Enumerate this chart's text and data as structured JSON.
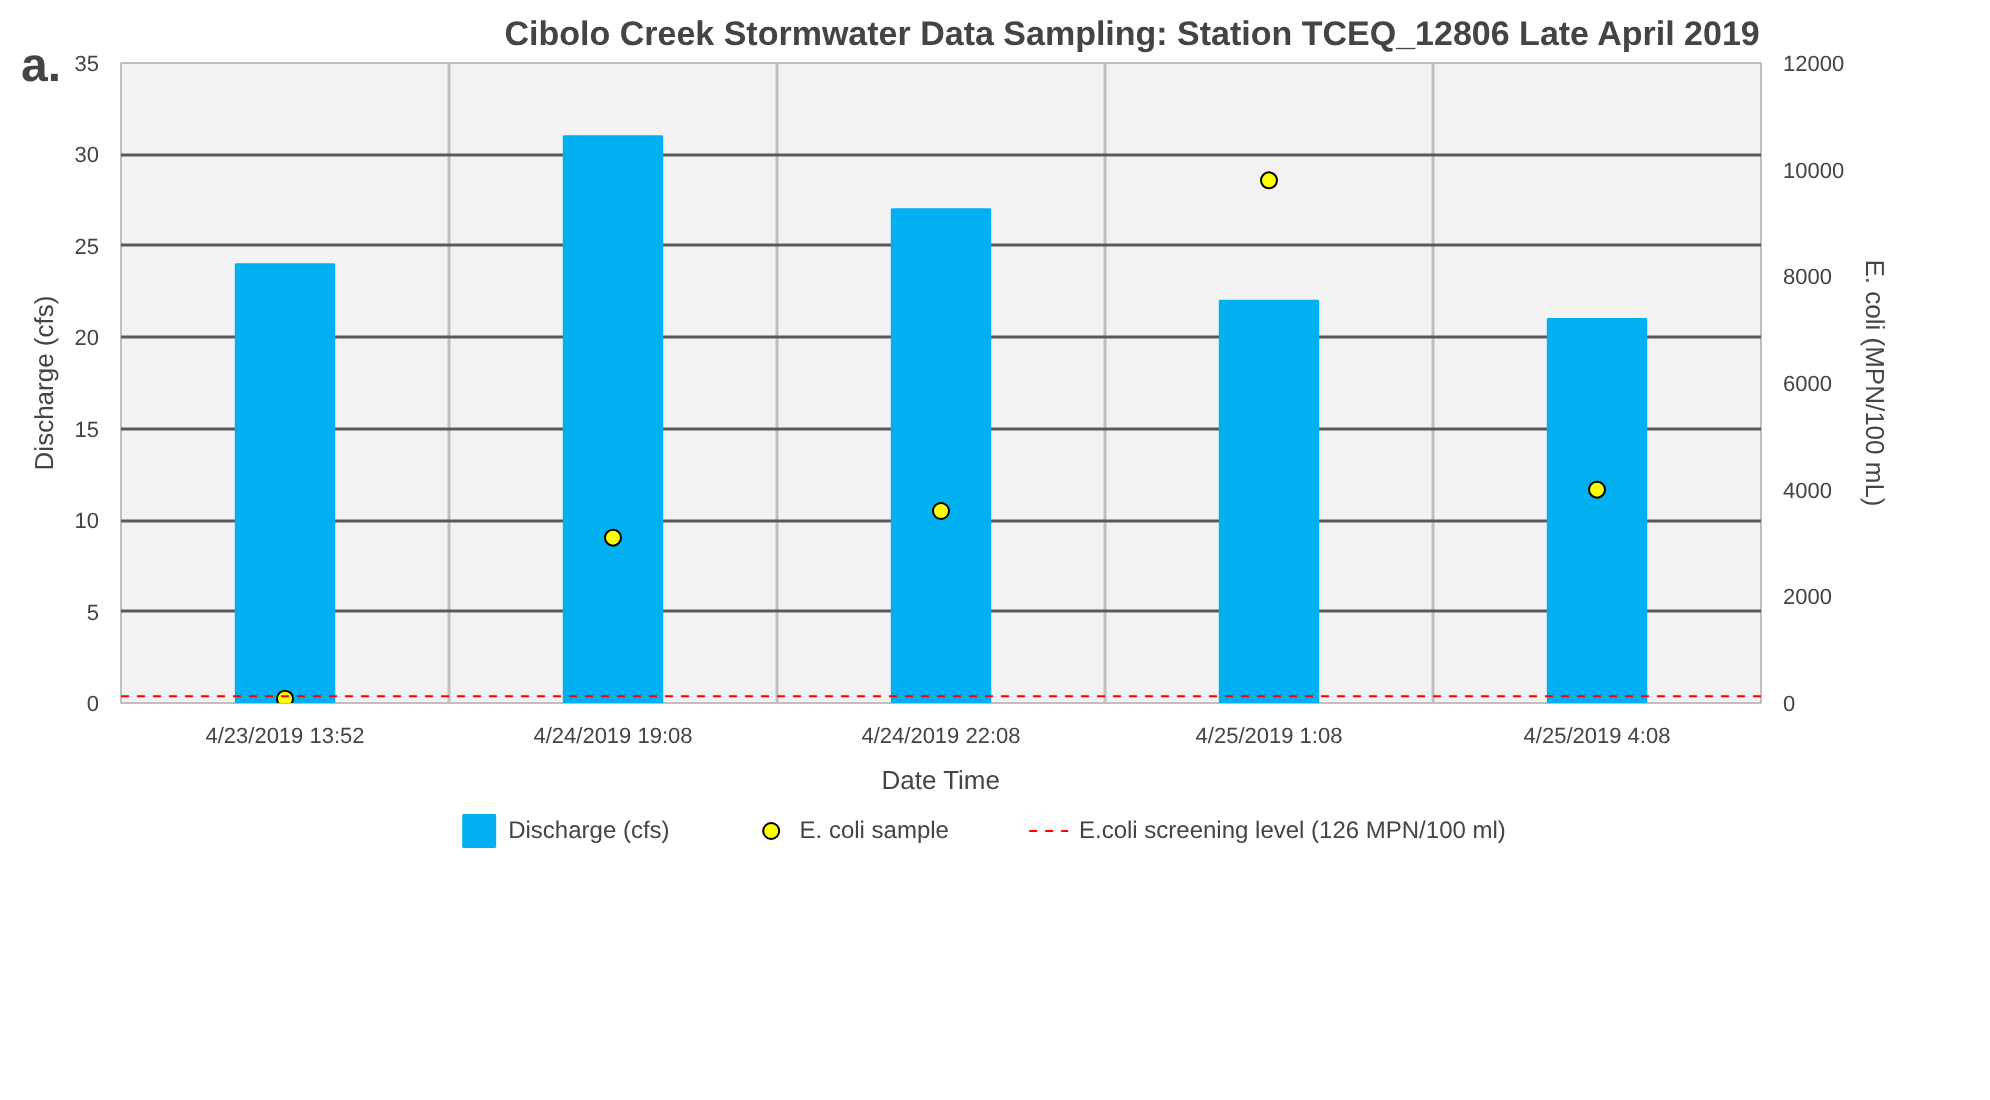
{
  "chart_data": {
    "type": "bar",
    "title": "Cibolo Creek Stormwater Data Sampling: Station TCEQ_12806 Late April 2019",
    "categories": [
      "4/23/2019 13:52",
      "4/24/2019 19:08",
      "4/24/2019 22:08",
      "4/25/2019 1:08",
      "4/25/2019 4:08"
    ],
    "series": [
      {
        "name": "Discharge (cfs)",
        "color": "#00b0f0",
        "values": [
          24,
          31,
          27,
          22,
          21
        ]
      },
      {
        "name": "E. coli sample",
        "type": "scatter",
        "axis": "y2",
        "color": "#ffff00",
        "values": [
          80,
          3100,
          3600,
          9800,
          4000
        ]
      }
    ],
    "xlabel": "Date Time",
    "ylabel": "Discharge (cfs)",
    "y2label": "E. coli (MPN/100 mL)",
    "ylim": [
      0,
      35
    ],
    "yticks": [
      0,
      5,
      10,
      15,
      20,
      25,
      30,
      35
    ],
    "y2lim": [
      0,
      12000
    ],
    "y2ticks": [
      0,
      2000,
      4000,
      6000,
      8000,
      10000,
      12000
    ],
    "ref_lines": [
      {
        "axis": "y2",
        "value": 126,
        "label": "E.coli screening level (126 MPN/100 ml)",
        "color": "#ff0000",
        "line_style": "dashed"
      }
    ],
    "annotations": [
      "a."
    ],
    "grid": true,
    "legend": "bottom",
    "marker": "circle"
  }
}
